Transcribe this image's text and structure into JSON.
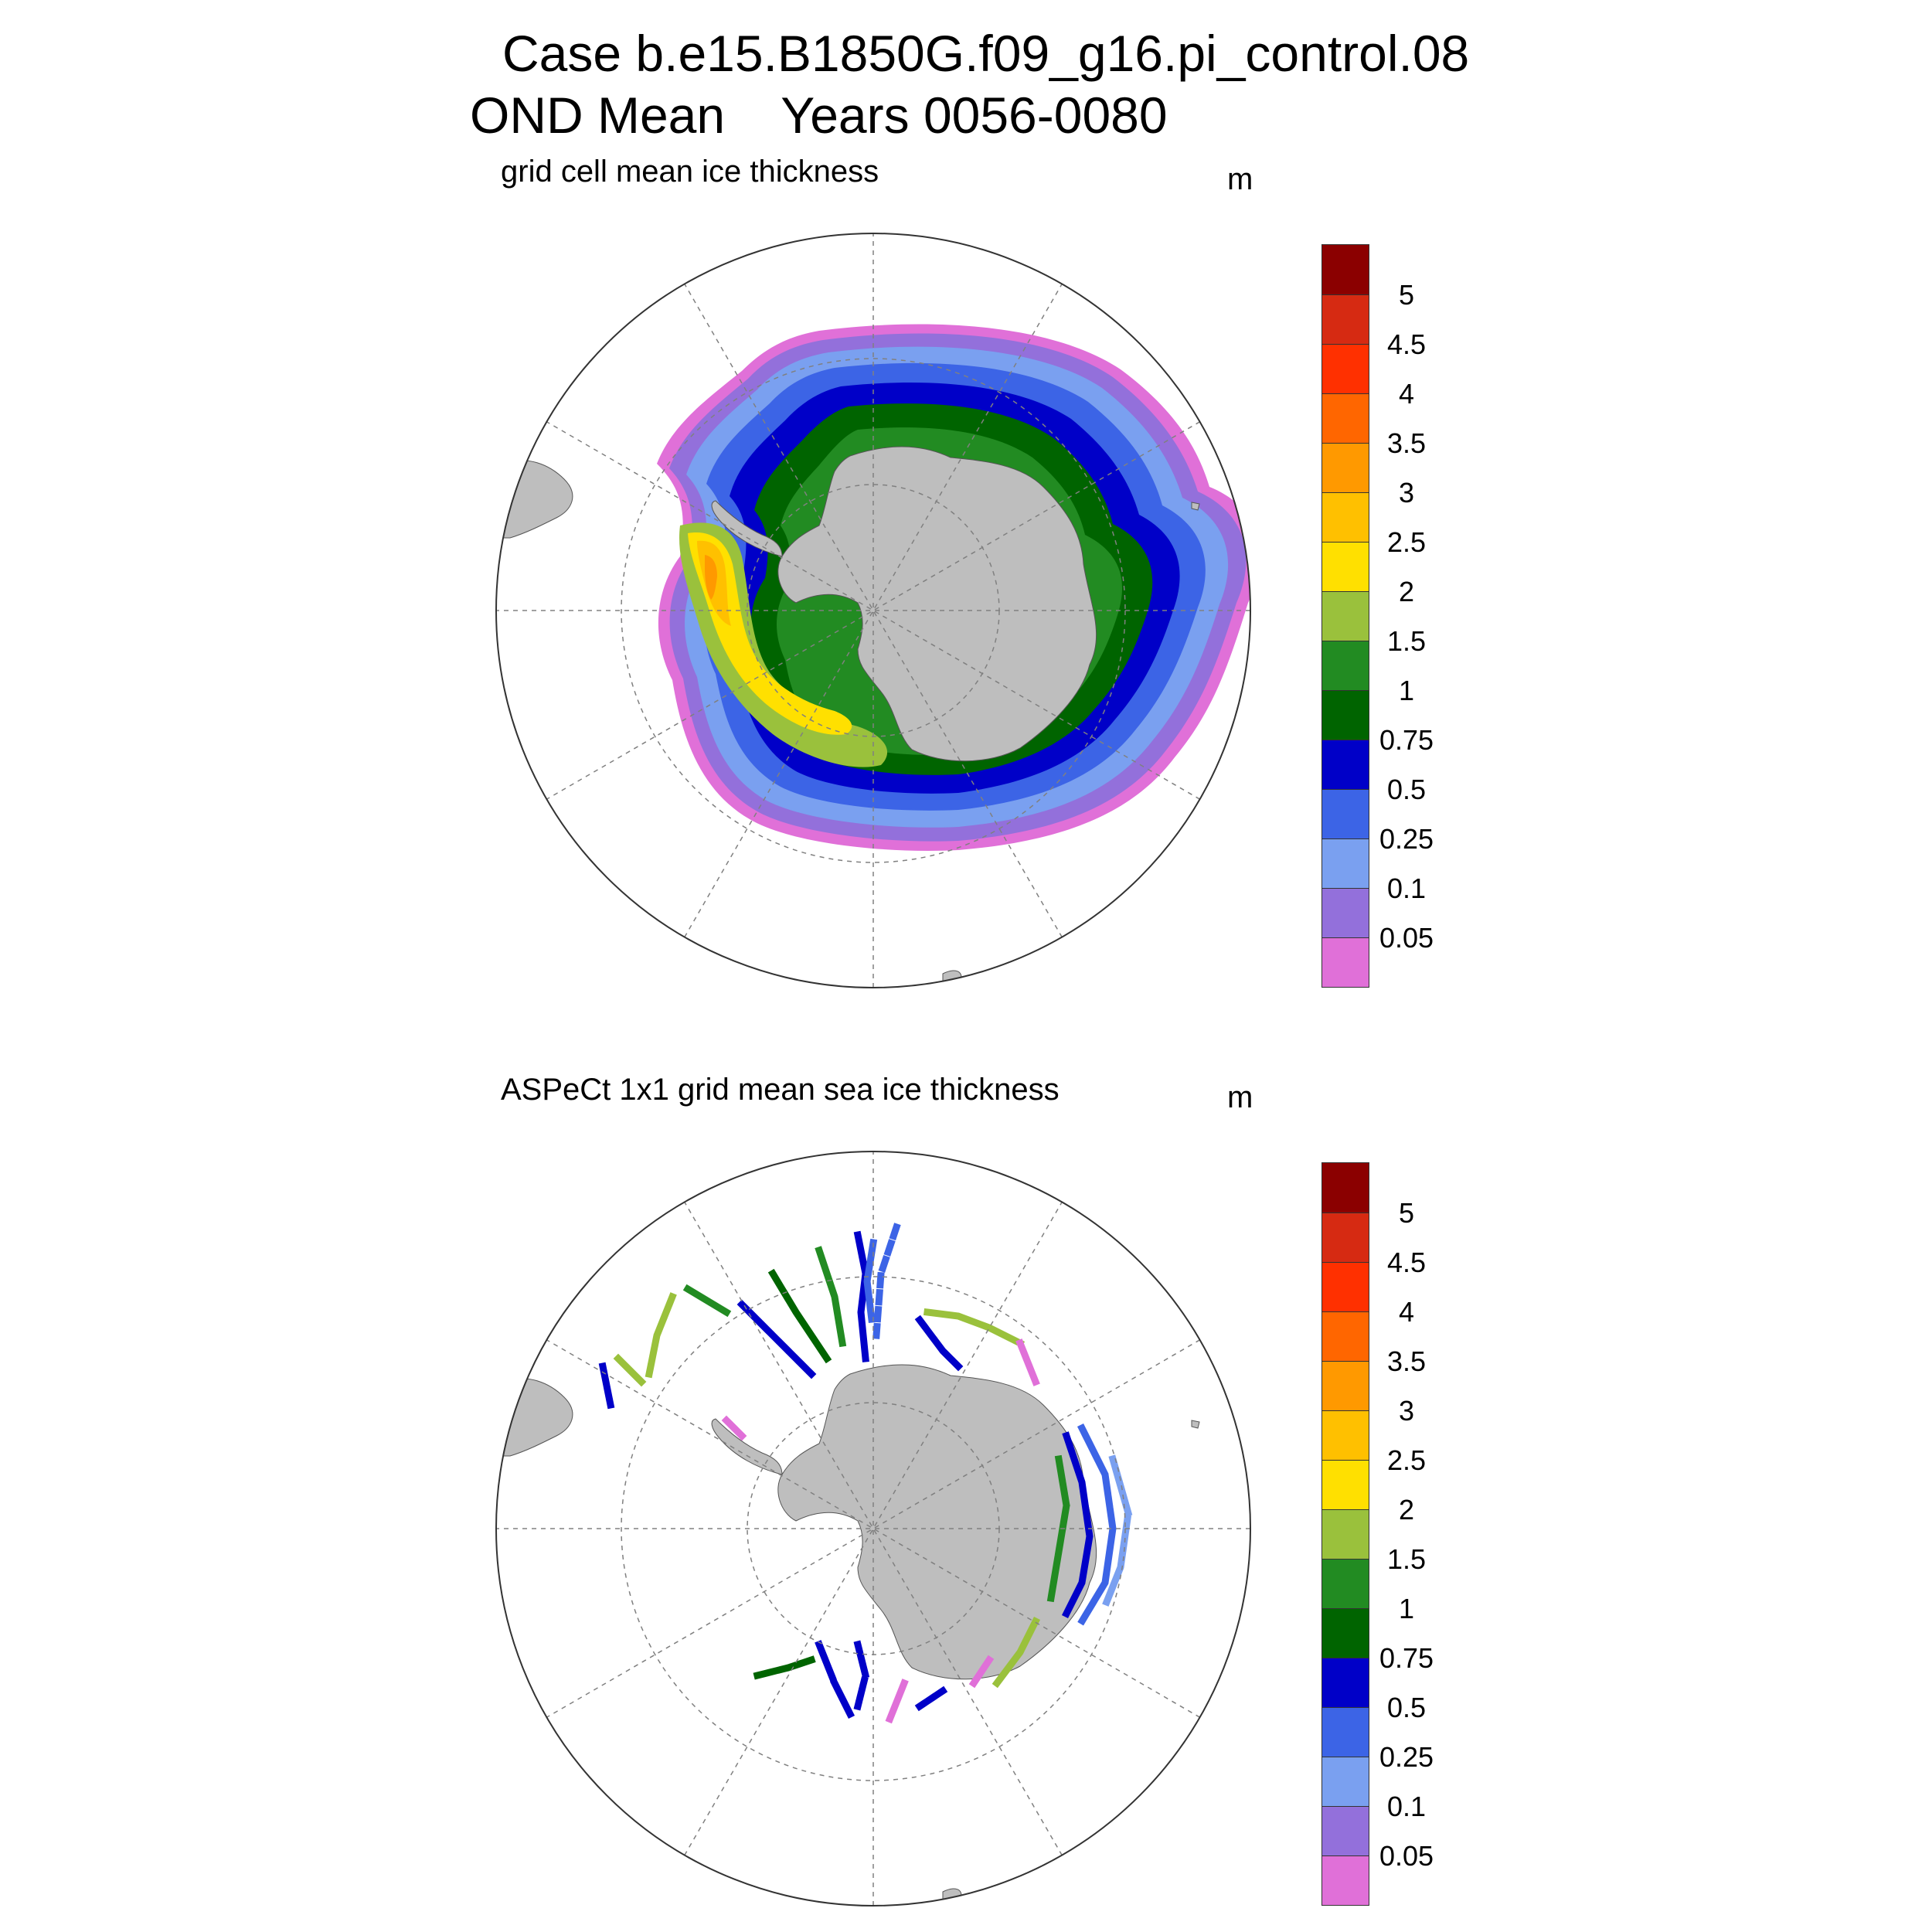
{
  "title_line1": "Case b.e15.B1850G.f09_g16.pi_control.08",
  "title_line2": "OND Mean    Years 0056-0080",
  "panels": [
    {
      "title": "grid cell mean ice thickness",
      "units": "m"
    },
    {
      "title": "ASPeCt 1x1 grid mean sea ice thickness",
      "units": "m"
    }
  ],
  "colorbar": {
    "labels": [
      "5",
      "4.5",
      "4",
      "3.5",
      "3",
      "2.5",
      "2",
      "1.5",
      "1",
      "0.75",
      "0.5",
      "0.25",
      "0.1",
      "0.05"
    ],
    "colors_top_to_bottom": [
      "#8b0000",
      "#d62a12",
      "#ff3000",
      "#ff6600",
      "#ff9900",
      "#ffc000",
      "#ffe000",
      "#9ac13c",
      "#228b22",
      "#006400",
      "#0000c8",
      "#3c64e6",
      "#7aa0f0",
      "#9370db",
      "#e070d8"
    ]
  },
  "colors": {
    "land": "#bebebe",
    "grid": "#808080"
  },
  "chart_data": {
    "type": "map",
    "projection": "south polar stereographic",
    "variable": "ice thickness (m)",
    "levels": [
      0.05,
      0.1,
      0.25,
      0.5,
      0.75,
      1,
      1.5,
      2,
      2.5,
      3,
      3.5,
      4,
      4.5,
      5
    ]
  }
}
